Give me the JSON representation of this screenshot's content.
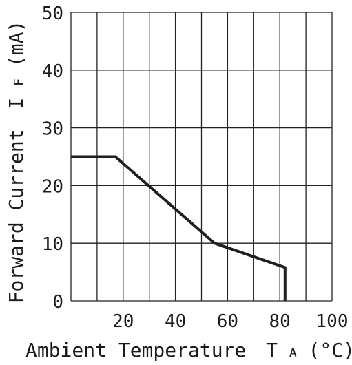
{
  "chart_data": {
    "type": "line",
    "xlabel": "Ambient Temperature",
    "xlabel_symbol": "T",
    "xlabel_subscript": "A",
    "xlabel_unit": "(°C)",
    "ylabel": "Forward Current",
    "ylabel_symbol": "I",
    "ylabel_subscript": "F",
    "ylabel_unit": "(mA)",
    "xlim": [
      0,
      100
    ],
    "ylim": [
      0,
      50
    ],
    "x_ticks": [
      20,
      40,
      60,
      80,
      100
    ],
    "x_tick_labels": [
      "20",
      "40",
      "60",
      "80",
      "100"
    ],
    "y_ticks": [
      0,
      10,
      20,
      30,
      40,
      50
    ],
    "y_tick_labels": [
      "0",
      "10",
      "20",
      "30",
      "40",
      "50"
    ],
    "grid": true,
    "series": [
      {
        "color": "#1f1f1f",
        "x": [
          0,
          17,
          55,
          82,
          82
        ],
        "y": [
          25,
          25,
          10,
          5.8,
          0
        ]
      }
    ]
  }
}
